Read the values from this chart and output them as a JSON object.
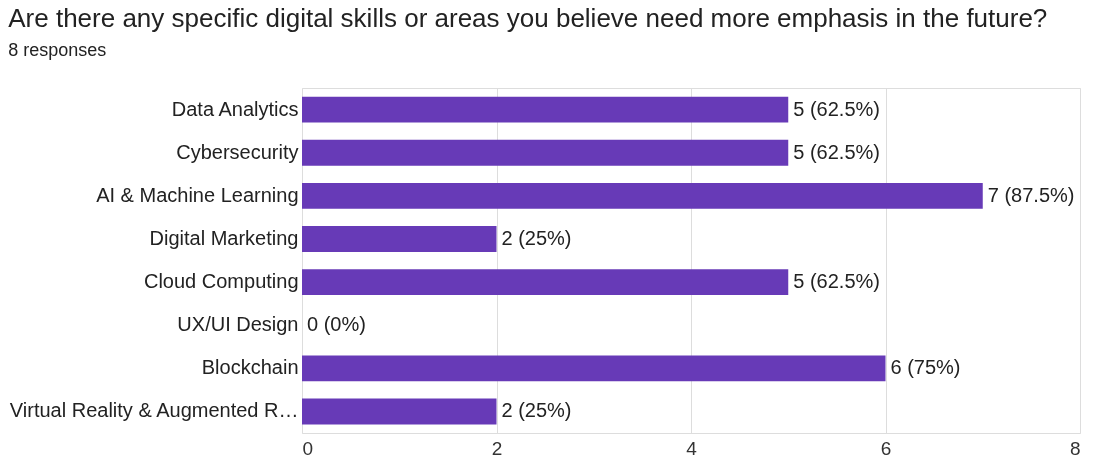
{
  "chart_data": {
    "type": "bar",
    "orientation": "horizontal",
    "title": "Are there any specific digital skills or areas you believe need more emphasis in the future?",
    "subtitle": "8 responses",
    "categories": [
      "Data Analytics",
      "Cybersecurity",
      "AI & Machine Learning",
      "Digital Marketing",
      "Cloud Computing",
      "UX/UI Design",
      "Blockchain",
      "Virtual Reality & Augmented R…"
    ],
    "values": [
      5,
      5,
      7,
      2,
      5,
      0,
      6,
      2
    ],
    "value_labels": [
      "5 (62.5%)",
      "5 (62.5%)",
      "7 (87.5%)",
      "2 (25%)",
      "5 (62.5%)",
      "0 (0%)",
      "6 (75%)",
      "2 (25%)"
    ],
    "color": "#673ab7",
    "xlim": [
      0,
      8
    ],
    "xticks": [
      0,
      2,
      4,
      6,
      8
    ],
    "grid": "x"
  }
}
